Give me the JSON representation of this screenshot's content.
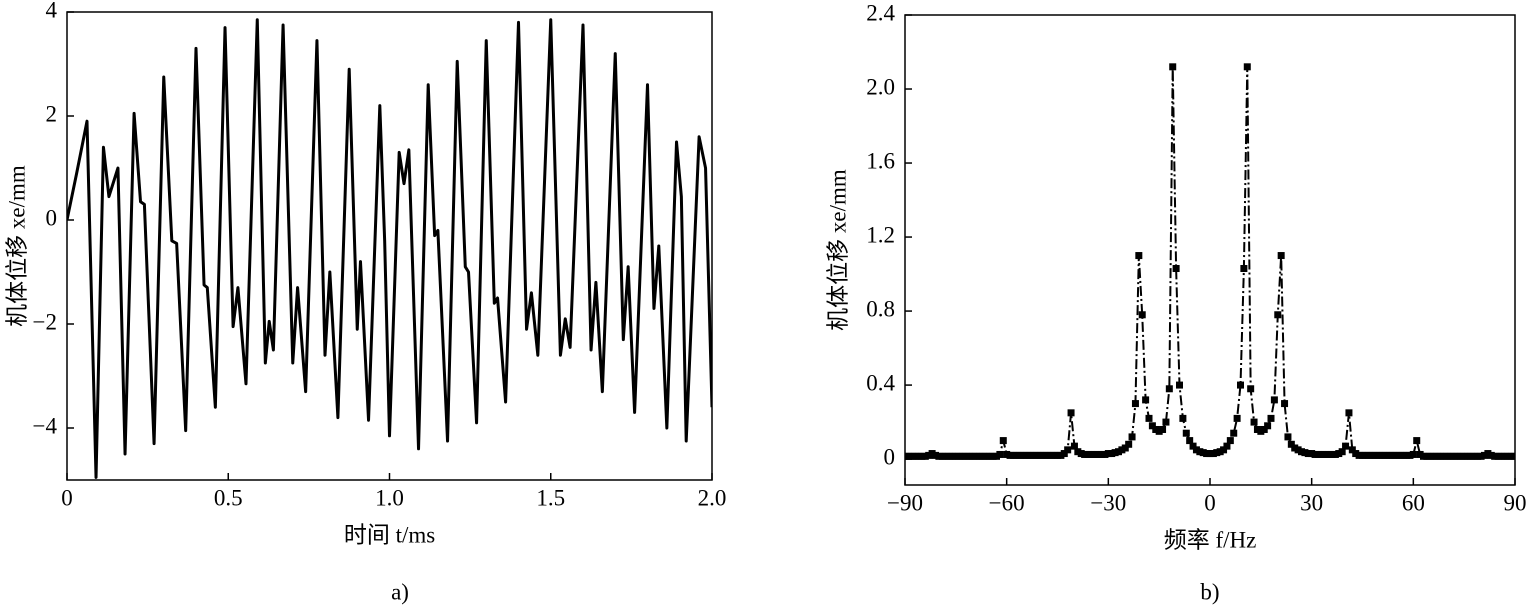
{
  "chart_data": [
    {
      "type": "line",
      "caption": "a)",
      "xlabel": "时间 t/ms",
      "ylabel": "机体位移 xe/mm",
      "color": "#000000",
      "marker": false,
      "xlim": [
        0,
        2
      ],
      "ylim": [
        -5,
        4
      ],
      "xticks": [
        0,
        0.5,
        {
          "value": 1,
          "label": "1.0"
        },
        1.5,
        {
          "value": 2,
          "label": "2.0"
        }
      ],
      "yticks": [
        {
          "value": -4,
          "label": "−4"
        },
        {
          "value": -2,
          "label": "−2"
        },
        0,
        2,
        4
      ],
      "x": [
        0,
        0.03,
        0.062,
        0.09,
        0.113,
        0.13,
        0.158,
        0.18,
        0.208,
        0.228,
        0.24,
        0.27,
        0.3,
        0.325,
        0.34,
        0.368,
        0.4,
        0.425,
        0.435,
        0.46,
        0.49,
        0.515,
        0.53,
        0.555,
        0.59,
        0.615,
        0.627,
        0.64,
        0.67,
        0.7,
        0.715,
        0.74,
        0.775,
        0.8,
        0.815,
        0.84,
        0.875,
        0.9,
        0.91,
        0.935,
        0.97,
        0.985,
        1.0,
        1.03,
        1.045,
        1.06,
        1.09,
        1.12,
        1.14,
        1.15,
        1.18,
        1.21,
        1.235,
        1.245,
        1.27,
        1.3,
        1.325,
        1.335,
        1.36,
        1.4,
        1.425,
        1.44,
        1.46,
        1.5,
        1.53,
        1.545,
        1.56,
        1.6,
        1.625,
        1.64,
        1.66,
        1.7,
        1.725,
        1.74,
        1.76,
        1.8,
        1.82,
        1.835,
        1.86,
        1.89,
        1.905,
        1.92,
        1.96,
        1.98,
        2.0
      ],
      "values": [
        0,
        0.9,
        1.9,
        -4.95,
        1.4,
        0.45,
        1.0,
        -4.5,
        2.05,
        0.35,
        0.3,
        -4.3,
        2.75,
        -0.4,
        -0.45,
        -4.05,
        3.3,
        -1.25,
        -1.3,
        -3.6,
        3.7,
        -2.05,
        -1.3,
        -3.15,
        3.85,
        -2.75,
        -1.95,
        -2.5,
        3.75,
        -2.75,
        -1.3,
        -3.3,
        3.45,
        -2.6,
        -1.0,
        -3.8,
        2.9,
        -2.1,
        -0.8,
        -3.85,
        2.2,
        -0.4,
        -4.15,
        1.3,
        0.7,
        1.35,
        -4.4,
        2.6,
        -0.3,
        -0.2,
        -4.25,
        3.05,
        -0.9,
        -1.0,
        -3.9,
        3.45,
        -1.6,
        -1.5,
        -3.5,
        3.8,
        -2.1,
        -1.4,
        -2.6,
        3.85,
        -2.6,
        -1.9,
        -2.45,
        3.75,
        -2.5,
        -1.2,
        -3.3,
        3.2,
        -2.3,
        -0.9,
        -3.7,
        2.6,
        -1.7,
        -0.5,
        -4.0,
        1.5,
        0.45,
        -4.25,
        1.6,
        1.0,
        -3.6
      ]
    },
    {
      "type": "line",
      "caption": "b)",
      "xlabel": "频率 f/Hz",
      "ylabel": "机体位移 xe/mm",
      "color": "#000000",
      "marker": true,
      "xlim": [
        -90,
        90
      ],
      "ylim": [
        -0.14,
        2.4
      ],
      "xticks": [
        {
          "value": -90,
          "label": "−90"
        },
        {
          "value": -60,
          "label": "−60"
        },
        {
          "value": -30,
          "label": "−30"
        },
        0,
        30,
        60,
        90
      ],
      "yticks": [
        0,
        0.4,
        0.8,
        1.2,
        1.6,
        {
          "value": 2,
          "label": "2.0"
        },
        2.4
      ],
      "x": [
        -90,
        -89,
        -88,
        -87,
        -86,
        -85,
        -84,
        -83,
        -82,
        -81,
        -80,
        -79,
        -78,
        -77,
        -76,
        -75,
        -74,
        -73,
        -72,
        -71,
        -70,
        -69,
        -68,
        -67,
        -66,
        -65,
        -64,
        -63,
        -62,
        -61,
        -60,
        -59,
        -58,
        -57,
        -56,
        -55,
        -54,
        -53,
        -52,
        -51,
        -50,
        -49,
        -48,
        -47,
        -46,
        -45,
        -44,
        -43,
        -42,
        -41,
        -40,
        -39,
        -38,
        -37,
        -36,
        -35,
        -34,
        -33,
        -32,
        -31,
        -30,
        -29,
        -28,
        -27,
        -26,
        -25,
        -24,
        -23,
        -22,
        -21,
        -20,
        -19,
        -18,
        -17,
        -16,
        -15,
        -14,
        -13,
        -12,
        -11,
        -10,
        -9,
        -8,
        -7,
        -6,
        -5,
        -4,
        -3,
        -2,
        -1,
        0,
        1,
        2,
        3,
        4,
        5,
        6,
        7,
        8,
        9,
        10,
        11,
        12,
        13,
        14,
        15,
        16,
        17,
        18,
        19,
        20,
        21,
        22,
        23,
        24,
        25,
        26,
        27,
        28,
        29,
        30,
        31,
        32,
        33,
        34,
        35,
        36,
        37,
        38,
        39,
        40,
        41,
        42,
        43,
        44,
        45,
        46,
        47,
        48,
        49,
        50,
        51,
        52,
        53,
        54,
        55,
        56,
        57,
        58,
        59,
        60,
        61,
        62,
        63,
        64,
        65,
        66,
        67,
        68,
        69,
        70,
        71,
        72,
        73,
        74,
        75,
        76,
        77,
        78,
        79,
        80,
        81,
        82,
        83,
        84,
        85,
        86,
        87,
        88,
        89,
        90
      ],
      "values": [
        0.015,
        0.015,
        0.015,
        0.015,
        0.015,
        0.015,
        0.015,
        0.02,
        0.03,
        0.02,
        0.015,
        0.015,
        0.015,
        0.015,
        0.015,
        0.015,
        0.015,
        0.015,
        0.015,
        0.015,
        0.015,
        0.015,
        0.015,
        0.015,
        0.015,
        0.015,
        0.015,
        0.015,
        0.025,
        0.1,
        0.025,
        0.02,
        0.02,
        0.02,
        0.02,
        0.02,
        0.02,
        0.02,
        0.02,
        0.02,
        0.02,
        0.02,
        0.02,
        0.02,
        0.02,
        0.02,
        0.02,
        0.03,
        0.05,
        0.25,
        0.07,
        0.04,
        0.03,
        0.025,
        0.025,
        0.025,
        0.025,
        0.025,
        0.025,
        0.025,
        0.03,
        0.03,
        0.035,
        0.04,
        0.05,
        0.06,
        0.08,
        0.12,
        0.3,
        1.1,
        0.78,
        0.32,
        0.22,
        0.18,
        0.16,
        0.15,
        0.16,
        0.2,
        0.38,
        2.12,
        1.03,
        0.4,
        0.22,
        0.14,
        0.1,
        0.07,
        0.05,
        0.04,
        0.035,
        0.03,
        0.03,
        0.03,
        0.035,
        0.04,
        0.05,
        0.07,
        0.1,
        0.14,
        0.22,
        0.4,
        1.03,
        2.12,
        0.38,
        0.2,
        0.16,
        0.15,
        0.16,
        0.18,
        0.22,
        0.32,
        0.78,
        1.1,
        0.3,
        0.12,
        0.08,
        0.06,
        0.05,
        0.04,
        0.035,
        0.03,
        0.03,
        0.025,
        0.025,
        0.025,
        0.025,
        0.025,
        0.025,
        0.025,
        0.03,
        0.04,
        0.07,
        0.25,
        0.05,
        0.03,
        0.02,
        0.02,
        0.02,
        0.02,
        0.02,
        0.02,
        0.02,
        0.02,
        0.02,
        0.02,
        0.02,
        0.02,
        0.02,
        0.02,
        0.02,
        0.02,
        0.025,
        0.1,
        0.025,
        0.015,
        0.015,
        0.015,
        0.015,
        0.015,
        0.015,
        0.015,
        0.015,
        0.015,
        0.015,
        0.015,
        0.015,
        0.015,
        0.015,
        0.015,
        0.015,
        0.015,
        0.015,
        0.02,
        0.03,
        0.02,
        0.015,
        0.015,
        0.015,
        0.015,
        0.015,
        0.015,
        0.015
      ]
    }
  ]
}
